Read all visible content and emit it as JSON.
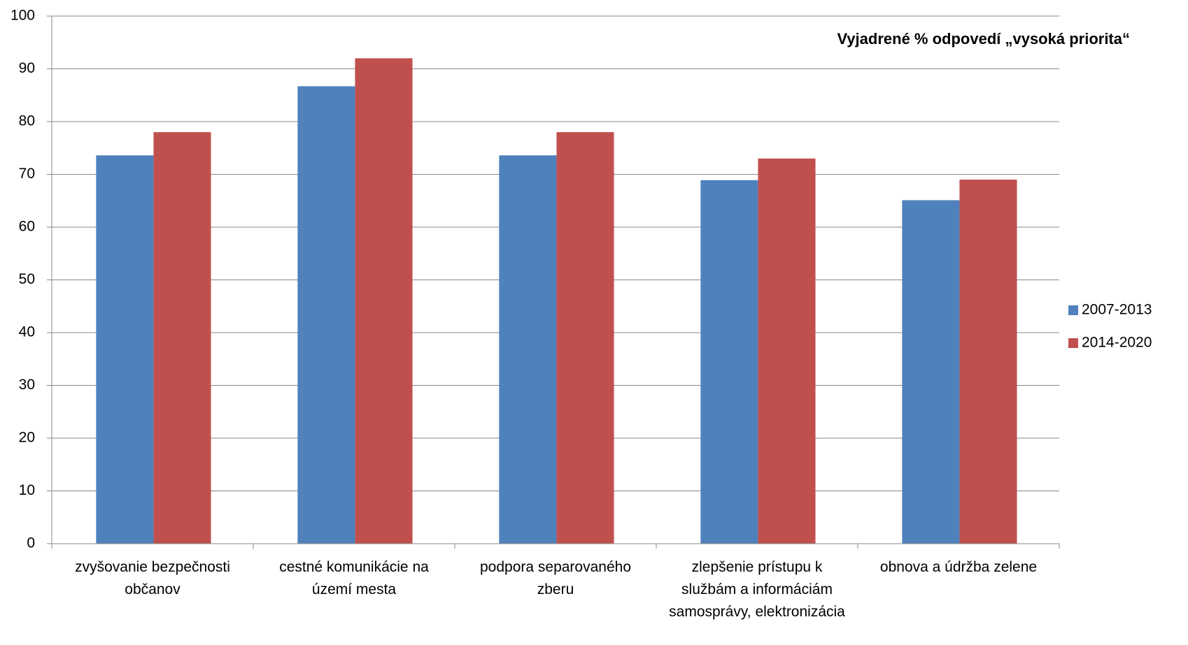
{
  "chart_data": {
    "type": "bar",
    "title": "Vyjadrené % odpovedí „vysoká priorita“",
    "categories": [
      "zvyšovanie bezpečnosti občanov",
      "cestné komunikácie na území mesta",
      "podpora separovaného zberu",
      "zlepšenie prístupu k službám a informáciám samosprávy, elektronizácia",
      "obnova a údržba zelene"
    ],
    "series": [
      {
        "name": "2007-2013",
        "color": "#4f81bd",
        "values": [
          73.6,
          86.7,
          73.6,
          68.9,
          65.1
        ]
      },
      {
        "name": "2014-2020",
        "color": "#c0504d",
        "values": [
          78,
          92,
          78,
          73,
          69
        ]
      }
    ],
    "ylim": [
      0,
      100
    ],
    "yticks": [
      0,
      10,
      20,
      30,
      40,
      50,
      60,
      70,
      80,
      90,
      100
    ],
    "grid": true,
    "legend": "right"
  }
}
